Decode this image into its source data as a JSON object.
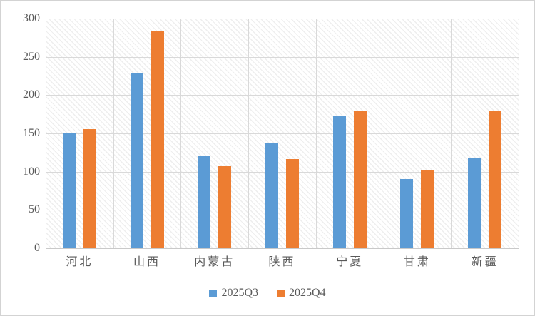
{
  "chart": {
    "background_color": "#FFFFFF",
    "border_color": "#D3D3D3",
    "gridline_color": "#D9D9D9",
    "axis_line_color": "#C9C9C9",
    "axis_text_color": "#595959",
    "legend_text_color": "#595959",
    "plot_fill": "light-downward-diagonal-hatch"
  },
  "chart_data": {
    "type": "bar",
    "title": "",
    "xlabel": "",
    "ylabel": "",
    "categories": [
      "河北",
      "山西",
      "内蒙古",
      "陕西",
      "宁夏",
      "甘肃",
      "新疆"
    ],
    "series": [
      {
        "name": "2025Q3",
        "color": "#5B9BD5",
        "values": [
          151,
          228,
          120,
          138,
          173,
          90,
          117
        ]
      },
      {
        "name": "2025Q4",
        "color": "#ED7D31",
        "values": [
          156,
          283,
          107,
          116,
          180,
          102,
          179
        ]
      }
    ],
    "ylim": [
      0,
      300
    ],
    "yticks": [
      0,
      50,
      100,
      150,
      200,
      250,
      300
    ],
    "grid": true,
    "vertical_category_gridlines": true,
    "legend_position": "bottom"
  }
}
